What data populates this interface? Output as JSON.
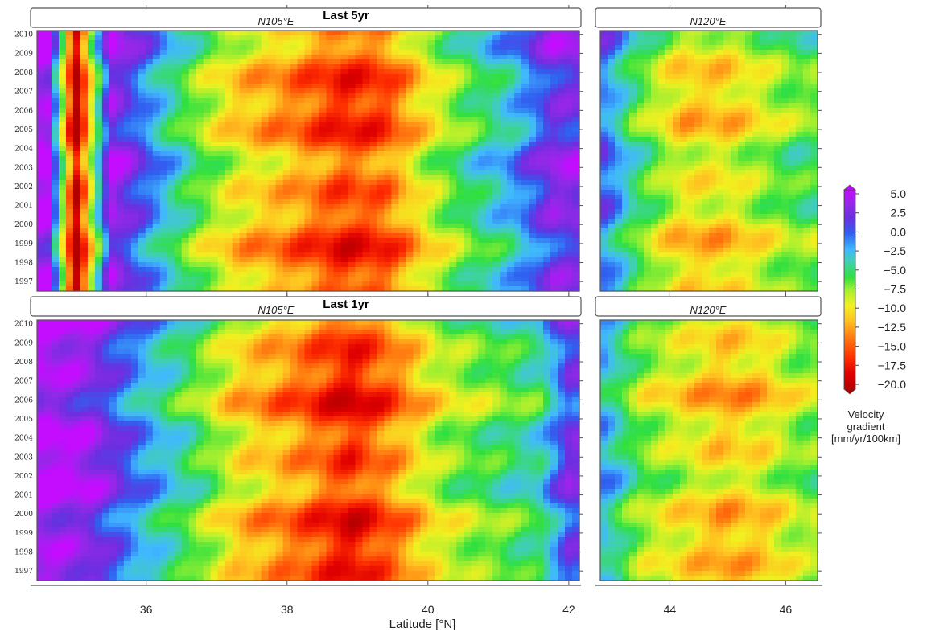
{
  "chart_data": {
    "type": "heatmap",
    "xlabel": "Latitude [°N]",
    "ylabel": "",
    "y_ticks": [
      "2010",
      "2009",
      "2008",
      "2007",
      "2006",
      "2005",
      "2004",
      "2003",
      "2002",
      "2001",
      "2000",
      "1999",
      "1998",
      "1997"
    ],
    "ylim": [
      1996.5,
      2010.2
    ],
    "colorbar": {
      "label_lines": [
        "Velocity",
        "gradient",
        "[mm/yr/100km]"
      ],
      "ticks": [
        "5.0",
        "2.5",
        "0.0",
        "−2.5",
        "−5.0",
        "−7.5",
        "−10.0",
        "−12.5",
        "−15.0",
        "−17.5",
        "−20.0"
      ],
      "range": [
        -20,
        5
      ],
      "colors": [
        "#b40000",
        "#e00000",
        "#ff3000",
        "#ff7a10",
        "#ffc020",
        "#f2f020",
        "#a0ef30",
        "#30e040",
        "#40d0b0",
        "#40b8ff",
        "#3060f0",
        "#6a2fe0",
        "#9428e8",
        "#c40cff"
      ]
    },
    "panels": [
      {
        "id": "p5w",
        "title": "Last 5yr",
        "subtitle": "N105°E",
        "x_ticks": [
          "36",
          "38",
          "40",
          "42"
        ],
        "xlim": [
          34.45,
          42.15
        ],
        "approx_profile": [
          [
            34.6,
            4.5
          ],
          [
            35.0,
            -20
          ],
          [
            35.5,
            3.5
          ],
          [
            36.2,
            -3
          ],
          [
            36.8,
            -8
          ],
          [
            37.3,
            -11
          ],
          [
            38.0,
            -13
          ],
          [
            38.8,
            -16
          ],
          [
            39.4,
            -15
          ],
          [
            40.0,
            -10
          ],
          [
            40.6,
            -6
          ],
          [
            41.2,
            -3
          ],
          [
            41.8,
            2
          ]
        ]
      },
      {
        "id": "p5e",
        "title": "",
        "subtitle": "N120°E",
        "x_ticks": [
          "44",
          "46"
        ],
        "xlim": [
          42.8,
          46.55
        ],
        "approx_profile": [
          [
            42.9,
            -1
          ],
          [
            43.4,
            -6
          ],
          [
            44.2,
            -11
          ],
          [
            45.0,
            -11
          ],
          [
            45.6,
            -9
          ],
          [
            46.2,
            -7
          ]
        ]
      },
      {
        "id": "p1w",
        "title": "Last 1yr",
        "subtitle": "N105°E",
        "x_ticks": [
          "36",
          "38",
          "40",
          "42"
        ],
        "xlim": [
          34.45,
          42.15
        ],
        "approx_profile": [
          [
            34.6,
            4.5
          ],
          [
            35.2,
            3
          ],
          [
            35.9,
            -2
          ],
          [
            36.6,
            -6
          ],
          [
            37.3,
            -11
          ],
          [
            38.2,
            -14
          ],
          [
            38.9,
            -17
          ],
          [
            39.5,
            -14
          ],
          [
            40.2,
            -9
          ],
          [
            40.9,
            -7
          ],
          [
            41.6,
            -5
          ],
          [
            42.0,
            1
          ]
        ]
      },
      {
        "id": "p1e",
        "title": "",
        "subtitle": "N120°E",
        "x_ticks": [
          "44",
          "46"
        ],
        "xlim": [
          42.8,
          46.55
        ],
        "approx_profile": [
          [
            42.9,
            -3
          ],
          [
            43.5,
            -8
          ],
          [
            44.2,
            -10
          ],
          [
            44.9,
            -12
          ],
          [
            45.6,
            -11
          ],
          [
            46.3,
            -8
          ]
        ]
      }
    ]
  }
}
